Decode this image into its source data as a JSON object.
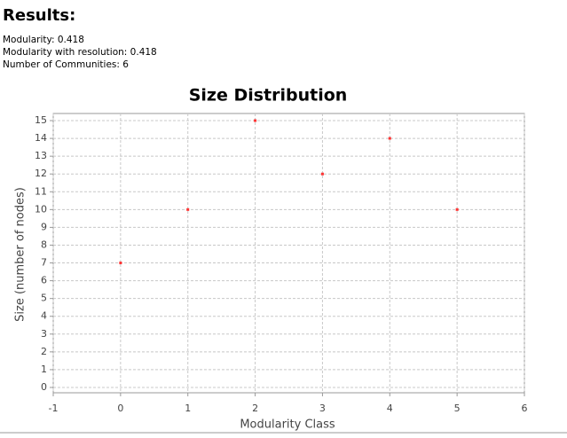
{
  "header": {
    "title": "Results:"
  },
  "results": [
    "Modularity: 0.418",
    "Modularity with resolution: 0.418",
    "Number of Communities: 6"
  ],
  "chart_data": {
    "type": "scatter",
    "title": "Size Distribution",
    "x_label": "Modularity Class",
    "y_label": "Size (number of nodes)",
    "x": [
      0,
      1,
      2,
      3,
      4,
      5
    ],
    "values": [
      7,
      10,
      15,
      12,
      14,
      10
    ],
    "color": "#ff3333",
    "xlim": [
      -1,
      6
    ],
    "ylim": [
      -0.3,
      15.4
    ],
    "xticks": [
      -1,
      0,
      1,
      2,
      3,
      4,
      5,
      6
    ],
    "yticks": [
      0,
      1,
      2,
      3,
      4,
      5,
      6,
      7,
      8,
      9,
      10,
      11,
      12,
      13,
      14,
      15
    ],
    "grid": true
  }
}
